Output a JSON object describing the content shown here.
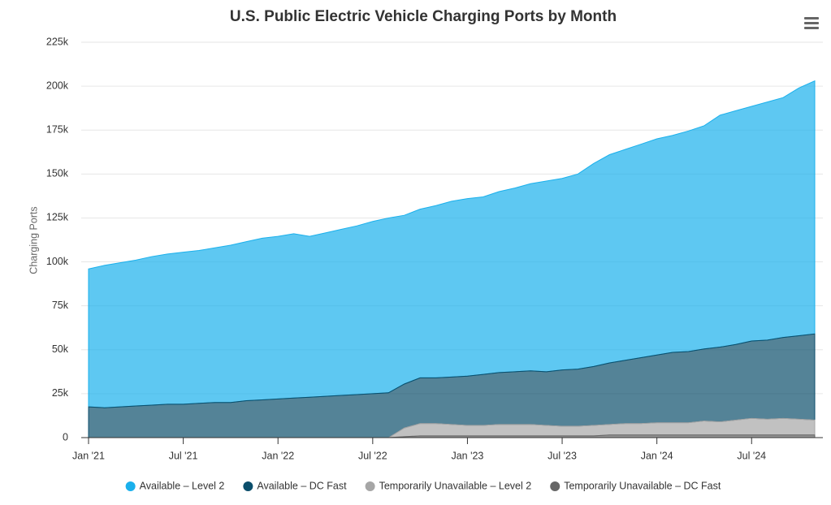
{
  "chart_data": {
    "type": "stacked-area",
    "title": "U.S. Public Electric Vehicle Charging Ports by Month",
    "y_label": "Charging Ports",
    "categories": [
      "Jan '21",
      null,
      null,
      null,
      null,
      null,
      "Jul '21",
      null,
      null,
      null,
      null,
      null,
      "Jan '22",
      null,
      null,
      null,
      null,
      null,
      "Jul '22",
      null,
      null,
      null,
      null,
      null,
      "Jan '23",
      null,
      null,
      null,
      null,
      null,
      "Jul '23",
      null,
      null,
      null,
      null,
      null,
      "Jan '24",
      null,
      null,
      null,
      null,
      null,
      "Jul '24",
      null,
      null,
      null,
      null
    ],
    "ylim": [
      0,
      225000
    ],
    "yticks": [
      0,
      {
        "value": 25000,
        "label": "25k"
      },
      {
        "value": 50000,
        "label": "50k"
      },
      {
        "value": 75000,
        "label": "75k"
      },
      {
        "value": 100000,
        "label": "100k"
      },
      {
        "value": 125000,
        "label": "125k"
      },
      {
        "value": 150000,
        "label": "150k"
      },
      {
        "value": 175000,
        "label": "175k"
      },
      {
        "value": 200000,
        "label": "200k"
      },
      {
        "value": 225000,
        "label": "225k"
      }
    ],
    "grid": true,
    "legend": "bottom",
    "series": [
      {
        "name": "Available – Level 2",
        "color": "#1ab0ec",
        "values": [
          78500,
          81000,
          82000,
          83000,
          84500,
          85500,
          86500,
          87000,
          88000,
          89500,
          90500,
          92000,
          92500,
          93500,
          91500,
          93000,
          94500,
          96000,
          98000,
          99500,
          96000,
          96000,
          98000,
          100000,
          101000,
          101000,
          103000,
          104500,
          106500,
          108500,
          109000,
          111000,
          115500,
          118500,
          120000,
          121500,
          123000,
          123500,
          125500,
          127000,
          132000,
          133000,
          133500,
          135500,
          136500,
          141000,
          144000
        ]
      },
      {
        "name": "Available – DC Fast",
        "color": "#0b4e6b",
        "values": [
          17500,
          17000,
          17500,
          18000,
          18500,
          19000,
          19000,
          19500,
          20000,
          20000,
          21000,
          21500,
          22000,
          22500,
          23000,
          23500,
          24000,
          24500,
          25000,
          25500,
          25000,
          26000,
          26000,
          27000,
          28000,
          29000,
          29500,
          30000,
          30500,
          30500,
          32000,
          32500,
          33500,
          35000,
          36000,
          37500,
          38500,
          40000,
          40500,
          41000,
          42500,
          43000,
          44000,
          45000,
          46000,
          47500,
          49000
        ]
      },
      {
        "name": "Temporarily Unavailable – Level 2",
        "color": "#a6a6a6",
        "values": [
          0,
          0,
          0,
          0,
          0,
          0,
          0,
          0,
          0,
          0,
          0,
          0,
          0,
          0,
          0,
          0,
          0,
          0,
          0,
          0,
          5000,
          7000,
          7000,
          6500,
          6000,
          6000,
          6500,
          6500,
          6500,
          6000,
          5500,
          5500,
          6000,
          6000,
          6500,
          6500,
          7000,
          7000,
          7000,
          8000,
          7500,
          8500,
          9500,
          9000,
          9500,
          9000,
          8500
        ]
      },
      {
        "name": "Temporarily Unavailable – DC Fast",
        "color": "#666666",
        "values": [
          0,
          0,
          0,
          0,
          0,
          0,
          0,
          0,
          0,
          0,
          0,
          0,
          0,
          0,
          0,
          0,
          0,
          0,
          0,
          0,
          500,
          1000,
          1000,
          1000,
          1000,
          1000,
          1000,
          1000,
          1000,
          1000,
          1000,
          1000,
          1000,
          1500,
          1500,
          1500,
          1500,
          1500,
          1500,
          1500,
          1500,
          1500,
          1500,
          1500,
          1500,
          1500,
          1500
        ]
      }
    ]
  }
}
